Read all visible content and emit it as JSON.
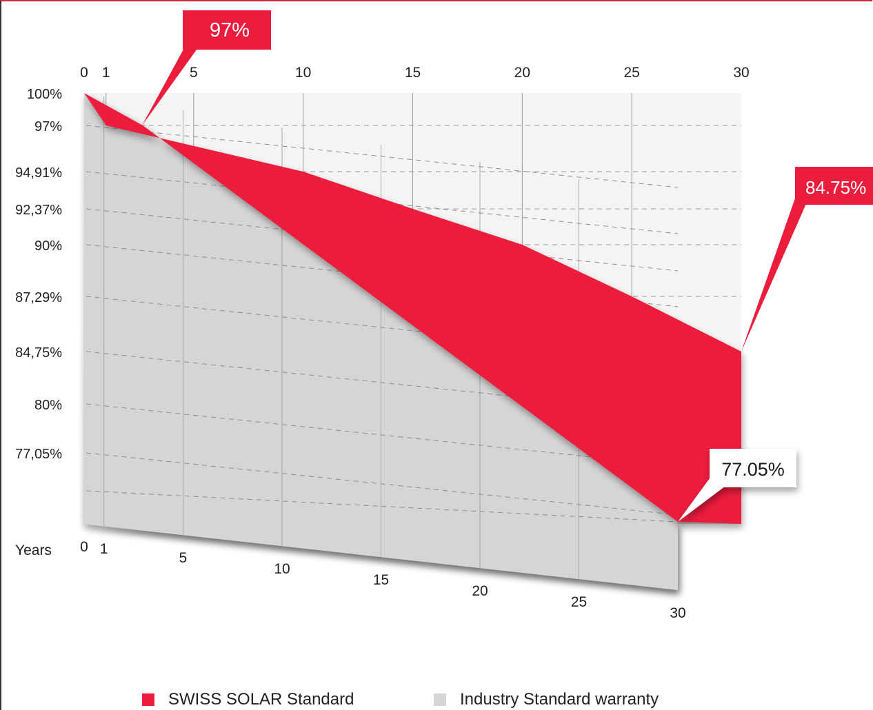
{
  "chart_data": {
    "type": "area",
    "title": "",
    "xlabel": "Years",
    "ylabel": "",
    "x_ticks": [
      "0",
      "1",
      "5",
      "10",
      "15",
      "20",
      "25",
      "30"
    ],
    "y_ticks": [
      "100%",
      "97%",
      "94,91%",
      "92,37%",
      "90%",
      "87,29%",
      "84,75%",
      "80%",
      "77,05%"
    ],
    "series": [
      {
        "name": "SWISS SOLAR Standard",
        "color": "#ec1c3c",
        "x": [
          0,
          1,
          10,
          15,
          20,
          25,
          30
        ],
        "values": [
          100,
          97,
          94.91,
          92.37,
          90,
          87.29,
          84.75
        ]
      },
      {
        "name": "Industry Standard warranty",
        "color": "#d6d4d5",
        "x": [
          0,
          1,
          30
        ],
        "values": [
          100,
          97,
          77.05
        ]
      }
    ],
    "callouts": [
      {
        "text": "97%",
        "x": 1,
        "series": "SWISS SOLAR Standard"
      },
      {
        "text": "84.75%",
        "x": 30,
        "series": "SWISS SOLAR Standard"
      },
      {
        "text": "77.05%",
        "x": 30,
        "series": "Industry Standard warranty"
      }
    ]
  },
  "legend": {
    "swiss": {
      "label": "SWISS SOLAR Standard",
      "color": "#ec1c3c"
    },
    "industry": {
      "label": "Industry Standard warranty",
      "color": "#d6d4d5"
    }
  }
}
